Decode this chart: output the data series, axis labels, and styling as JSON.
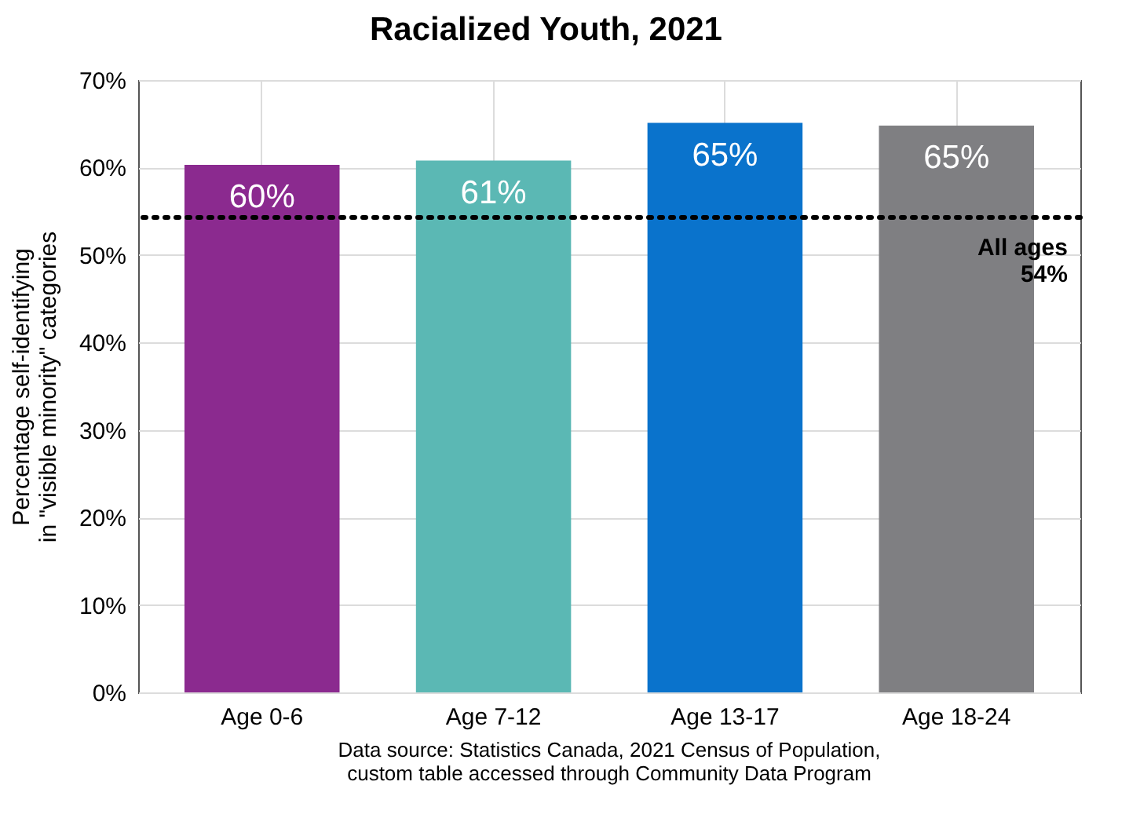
{
  "chart_data": {
    "type": "bar",
    "title": "Racialized Youth, 2021",
    "ylabel": "Percentage self-identifying\nin \"visible minority\" categories",
    "categories": [
      "Age 0-6",
      "Age 7-12",
      "Age 13-17",
      "Age 18-24"
    ],
    "values": [
      60.3,
      60.8,
      65.1,
      64.8
    ],
    "value_labels": [
      "60%",
      "61%",
      "65%",
      "65%"
    ],
    "colors": [
      "#8b2a8f",
      "#5bb8b4",
      "#0a73cc",
      "#7f7f82"
    ],
    "ylim": [
      0,
      70
    ],
    "yticks": [
      {
        "value": 0,
        "label": "0%"
      },
      {
        "value": 10,
        "label": "10%"
      },
      {
        "value": 20,
        "label": "20%"
      },
      {
        "value": 30,
        "label": "30%"
      },
      {
        "value": 40,
        "label": "40%"
      },
      {
        "value": 50,
        "label": "50%"
      },
      {
        "value": 60,
        "label": "60%"
      },
      {
        "value": 70,
        "label": "70%"
      }
    ],
    "grid": true,
    "ref_lines": [
      {
        "axis": "y",
        "value": 54.3,
        "label": "All ages\n54%",
        "color": "#000000",
        "line_style": "dotted"
      }
    ],
    "annotations": [
      "Data source: Statistics Canada, 2021 Census of Population,\ncustom table accessed through Community Data Program"
    ]
  }
}
